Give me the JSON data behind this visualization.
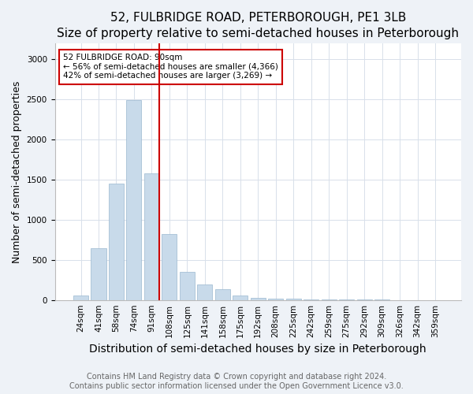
{
  "title": "52, FULBRIDGE ROAD, PETERBOROUGH, PE1 3LB",
  "subtitle": "Size of property relative to semi-detached houses in Peterborough",
  "xlabel": "Distribution of semi-detached houses by size in Peterborough",
  "ylabel": "Number of semi-detached properties",
  "categories": [
    "24sqm",
    "41sqm",
    "58sqm",
    "74sqm",
    "91sqm",
    "108sqm",
    "125sqm",
    "141sqm",
    "158sqm",
    "175sqm",
    "192sqm",
    "208sqm",
    "225sqm",
    "242sqm",
    "259sqm",
    "275sqm",
    "292sqm",
    "309sqm",
    "326sqm",
    "342sqm",
    "359sqm"
  ],
  "values": [
    52,
    648,
    1447,
    2495,
    1580,
    820,
    350,
    190,
    130,
    55,
    28,
    18,
    12,
    8,
    5,
    4,
    2,
    2,
    1,
    0,
    0
  ],
  "bar_color": "#c8daea",
  "bar_edgecolor": "#9ab8d0",
  "highlight_index": 4,
  "highlight_line_color": "#cc0000",
  "annotation_box_edgecolor": "#cc0000",
  "annotation_text_line1": "52 FULBRIDGE ROAD: 90sqm",
  "annotation_text_line2": "← 56% of semi-detached houses are smaller (4,366)",
  "annotation_text_line3": "42% of semi-detached houses are larger (3,269) →",
  "ylim": [
    0,
    3200
  ],
  "yticks": [
    0,
    500,
    1000,
    1500,
    2000,
    2500,
    3000
  ],
  "footer_line1": "Contains HM Land Registry data © Crown copyright and database right 2024.",
  "footer_line2": "Contains public sector information licensed under the Open Government Licence v3.0.",
  "title_fontsize": 11,
  "subtitle_fontsize": 9,
  "axis_label_fontsize": 9,
  "tick_fontsize": 7.5,
  "footer_fontsize": 7,
  "bg_color": "#eef2f7",
  "plot_bg_color": "#ffffff",
  "grid_color": "#d8e0ea"
}
